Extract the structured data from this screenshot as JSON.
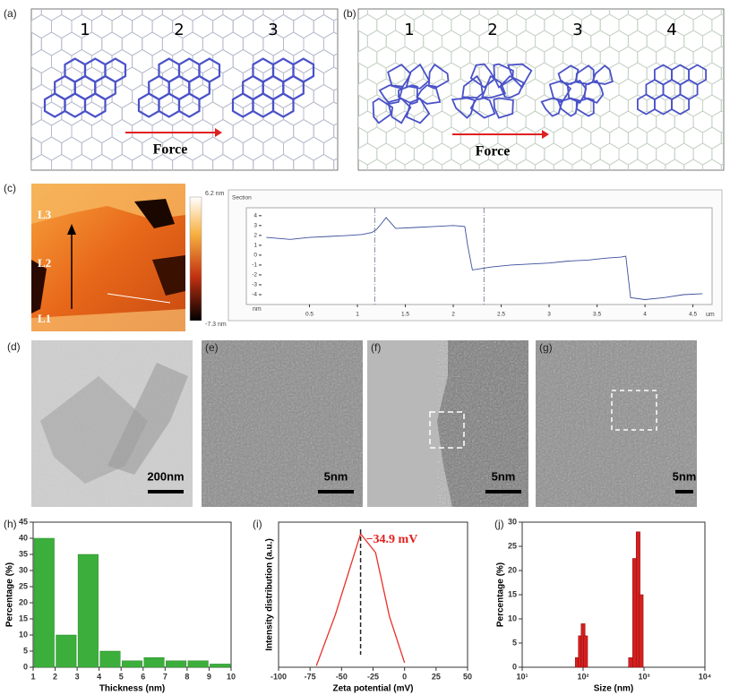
{
  "panels": {
    "a": {
      "label": "(a)",
      "numbers": [
        "1",
        "2",
        "3"
      ],
      "arrow": "Force"
    },
    "b": {
      "label": "(b)",
      "numbers": [
        "1",
        "2",
        "3",
        "4"
      ],
      "arrow": "Force"
    },
    "c": {
      "label": "(c)",
      "afm_labels": [
        "L3",
        "L2",
        "L1"
      ],
      "colorbar": [
        "6.2 nm",
        "-7.3 nm"
      ]
    },
    "d": {
      "label": "(d)",
      "scale_bar": "200nm"
    },
    "e": {
      "label": "(e)",
      "scale_bar": "5nm"
    },
    "f": {
      "label": "(f)",
      "scale_bar": "5nm"
    },
    "g": {
      "label": "(g)",
      "scale_bar": "5nm"
    },
    "h": {
      "label": "(h)"
    },
    "i": {
      "label": "(i)"
    },
    "j": {
      "label": "(j)"
    }
  },
  "chart_data": [
    {
      "type": "line",
      "title": "Section",
      "xlabel": "um",
      "ylabel": "nm",
      "color": "#3a4f9a",
      "x": [
        0.05,
        0.3,
        0.5,
        0.7,
        0.9,
        1.05,
        1.15,
        1.2,
        1.25,
        1.3,
        1.4,
        1.6,
        1.8,
        2.0,
        2.12,
        2.15,
        2.2,
        2.4,
        2.6,
        2.8,
        3.0,
        3.2,
        3.4,
        3.6,
        3.75,
        3.8,
        3.85,
        4.0,
        4.2,
        4.4,
        4.6
      ],
      "values": [
        1.8,
        1.6,
        1.8,
        1.9,
        2.0,
        2.1,
        2.3,
        2.6,
        3.2,
        3.8,
        2.7,
        2.8,
        2.9,
        3.0,
        2.9,
        1.0,
        -1.5,
        -1.2,
        -1.0,
        -0.9,
        -0.8,
        -0.6,
        -0.5,
        -0.3,
        -0.2,
        -0.1,
        -4.3,
        -4.5,
        -4.3,
        -4.0,
        -3.9
      ],
      "cursors": [
        1.18,
        2.32
      ],
      "xlim": [
        0,
        4.7
      ],
      "xticks": [
        0.5,
        1,
        1.5,
        2,
        2.5,
        3,
        3.5,
        4,
        4.5
      ],
      "ylim": [
        -5,
        4.8
      ],
      "yticks": [
        4,
        3,
        2,
        1,
        0,
        -1,
        -2,
        -3,
        -4
      ]
    },
    {
      "type": "histogram",
      "xlabel": "Thickness (nm)",
      "ylabel": "Percentage (%)",
      "color": "#3cae3c",
      "bins": [
        1,
        2,
        3,
        4,
        5,
        6,
        7,
        8,
        9,
        10
      ],
      "values": [
        40,
        10,
        35,
        5,
        2,
        3,
        2,
        2,
        1
      ],
      "xlim": [
        1,
        10
      ],
      "xticks": [
        1,
        2,
        3,
        4,
        5,
        6,
        7,
        8,
        9,
        10
      ],
      "ylim": [
        0,
        45
      ],
      "yticks": [
        0,
        5,
        10,
        15,
        20,
        25,
        30,
        35,
        40,
        45
      ]
    },
    {
      "type": "line",
      "xlabel": "Zeta potential (mV)",
      "ylabel": "Intensity distribution (a.u.)",
      "color": "#e8302a",
      "x": [
        -70,
        -55,
        -34.9,
        -23,
        -12,
        0
      ],
      "values": [
        0.01,
        0.36,
        0.92,
        0.79,
        0.35,
        0.03
      ],
      "annotation": {
        "value": -34.9,
        "label": "−34.9 mV"
      },
      "xlim": [
        -100,
        50
      ],
      "xticks": [
        -100,
        -75,
        -50,
        -25,
        0,
        25,
        50
      ],
      "ylim": [
        0,
        1
      ]
    },
    {
      "type": "bar",
      "xlabel": "Size (nm)",
      "ylabel": "Percentage (%)",
      "color": "#d42020",
      "log_x": true,
      "x": [
        80,
        90,
        100,
        110,
        600,
        700,
        800,
        900
      ],
      "values": [
        2,
        6.5,
        9,
        6.5,
        2,
        22.5,
        28,
        15
      ],
      "xlim": [
        10,
        10000
      ],
      "xticks": [
        {
          "value": 10,
          "label": "10¹"
        },
        {
          "value": 100,
          "label": "10²"
        },
        {
          "value": 1000,
          "label": "10³"
        },
        {
          "value": 10000,
          "label": "10⁴"
        }
      ],
      "ylim": [
        0,
        30
      ],
      "yticks": [
        0,
        5,
        10,
        15,
        20,
        25,
        30
      ]
    }
  ]
}
